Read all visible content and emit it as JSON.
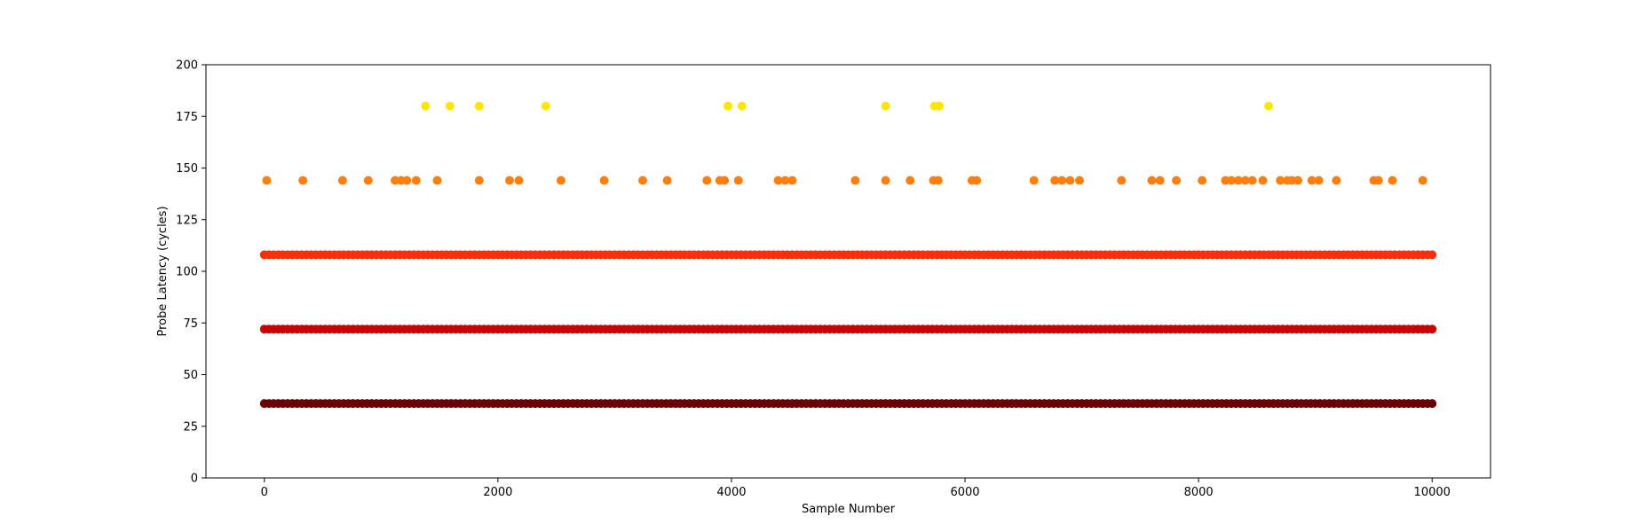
{
  "chart_data": {
    "type": "scatter",
    "title": "",
    "xlabel": "Sample Number",
    "ylabel": "Probe Latency (cycles)",
    "xlim": [
      -500,
      10500
    ],
    "ylim": [
      0,
      200
    ],
    "x_ticks": [
      0,
      2000,
      4000,
      6000,
      8000,
      10000
    ],
    "y_ticks": [
      0,
      25,
      50,
      75,
      100,
      125,
      150,
      175,
      200
    ],
    "grid": false,
    "legend": "none",
    "series": [
      {
        "y": 36,
        "color": "#6b0000",
        "x_range": [
          0,
          10000
        ],
        "description": "dense band"
      },
      {
        "y": 72,
        "color": "#cc0000",
        "x_range": [
          0,
          10000
        ],
        "description": "dense band"
      },
      {
        "y": 108,
        "color": "#ff2d0a",
        "x_range": [
          0,
          10000
        ],
        "description": "dense band"
      },
      {
        "y": 144,
        "color": "#ff7f0e",
        "x": [
          20,
          330,
          670,
          890,
          1120,
          1170,
          1220,
          1300,
          1480,
          1840,
          2100,
          2180,
          2540,
          2910,
          3240,
          3450,
          3790,
          3900,
          3940,
          4060,
          4400,
          4460,
          4520,
          5060,
          5320,
          5530,
          5730,
          5770,
          6060,
          6100,
          6590,
          6770,
          6830,
          6900,
          6980,
          7340,
          7600,
          7670,
          7810,
          8030,
          8230,
          8280,
          8340,
          8400,
          8460,
          8550,
          8700,
          8760,
          8800,
          8850,
          8970,
          9030,
          9180,
          9500,
          9540,
          9660,
          9920
        ]
      },
      {
        "y": 180,
        "color": "#ffe600",
        "x": [
          1380,
          1590,
          1840,
          2410,
          3970,
          4090,
          5320,
          5740,
          5780,
          8600
        ]
      }
    ]
  }
}
